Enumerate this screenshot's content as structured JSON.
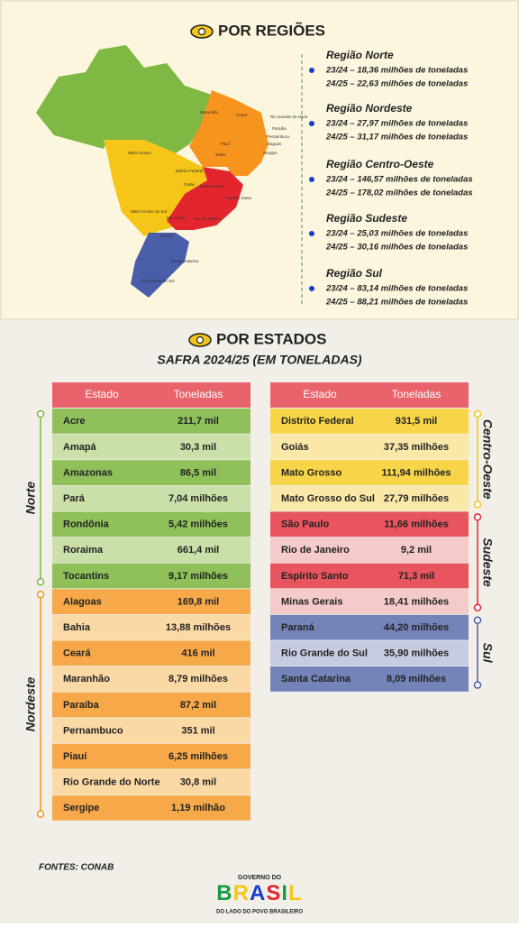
{
  "header": {
    "title": "POR REGIÕES"
  },
  "map_labels": [
    "Maranhão",
    "Piauí",
    "Ceará",
    "Rio Grande do Norte",
    "Paraíba",
    "Pernambuco",
    "Alagoas",
    "Sergipe",
    "Bahia",
    "Mato Grosso",
    "Goiás",
    "Distrito Federal",
    "Mato Grosso do Sul",
    "Minas Gerais",
    "Espírito Santo",
    "Rio de Janeiro",
    "São Paulo",
    "Paraná",
    "Santa Catarina",
    "Rio Grande do Sul"
  ],
  "regions": [
    {
      "name": "Região Norte",
      "lines": [
        "23/24 – 18,36 milhões de toneladas",
        "24/25 – 22,63 milhões de toneladas"
      ]
    },
    {
      "name": "Região Nordeste",
      "lines": [
        "23/24 – 27,97 milhões de toneladas",
        "24/25 – 31,17 milhões de toneladas"
      ]
    },
    {
      "name": "Região Centro-Oeste",
      "lines": [
        "23/24 – 146,57 milhões de toneladas",
        "24/25 – 178,02 milhões de toneladas"
      ]
    },
    {
      "name": "Região Sudeste",
      "lines": [
        "23/24 – 25,03 milhões de toneladas",
        "24/25 – 30,16 milhões de toneladas"
      ]
    },
    {
      "name": "Região Sul",
      "lines": [
        "23/24 – 83,14 milhões de toneladas",
        "24/25 – 88,21 milhões de toneladas"
      ]
    }
  ],
  "states_section": {
    "title": "POR ESTADOS",
    "subtitle": "SAFRA 2024/25 (EM TONELADAS)"
  },
  "tables": [
    {
      "columns": [
        "Estado",
        "Toneladas"
      ],
      "groups": [
        {
          "name": "Norte",
          "rows": [
            [
              "Acre",
              "211,7 mil"
            ],
            [
              "Amapá",
              "30,3 mil"
            ],
            [
              "Amazonas",
              "86,5 mil"
            ],
            [
              "Pará",
              "7,04 milhões"
            ],
            [
              "Rondônia",
              "5,42 milhões"
            ],
            [
              "Roraima",
              "661,4 mil"
            ],
            [
              "Tocantins",
              "9,17 milhões"
            ]
          ]
        },
        {
          "name": "Nordeste",
          "rows": [
            [
              "Alagoas",
              "169,8 mil"
            ],
            [
              "Bahia",
              "13,88 milhões"
            ],
            [
              "Ceará",
              "416 mil"
            ],
            [
              "Maranhão",
              "8,79 milhões"
            ],
            [
              "Paraíba",
              "87,2 mil"
            ],
            [
              "Pernambuco",
              "351 mil"
            ],
            [
              "Piauí",
              "6,25 milhões"
            ],
            [
              "Rio Grande do Norte",
              "30,8 mil"
            ],
            [
              "Sergipe",
              "1,19 milhão"
            ]
          ]
        }
      ]
    },
    {
      "columns": [
        "Estado",
        "Toneladas"
      ],
      "groups": [
        {
          "name": "Centro-Oeste",
          "rows": [
            [
              "Distrito Federal",
              "931,5 mil"
            ],
            [
              "Goiás",
              "37,35 milhões"
            ],
            [
              "Mato Grosso",
              "111,94 milhões"
            ],
            [
              "Mato Grosso do Sul",
              "27,79 milhões"
            ]
          ]
        },
        {
          "name": "Sudeste",
          "rows": [
            [
              "São Paulo",
              "11,66 milhões"
            ],
            [
              "Rio de Janeiro",
              "9,2 mil"
            ],
            [
              "Espírito Santo",
              "71,3 mil"
            ],
            [
              "Minas Gerais",
              "18,41 milhões"
            ]
          ]
        },
        {
          "name": "Sul",
          "rows": [
            [
              "Paraná",
              "44,20 milhões"
            ],
            [
              "Rio Grande do Sul",
              "35,90 milhões"
            ],
            [
              "Santa Catarina",
              "8,09 milhões"
            ]
          ]
        }
      ]
    }
  ],
  "footer": {
    "source": "FONTES: CONAB",
    "logo_top": "GOVERNO DO",
    "logo_main": "BRASIL",
    "logo_bottom": "DO LADO DO POVO BRASILEIRO"
  }
}
